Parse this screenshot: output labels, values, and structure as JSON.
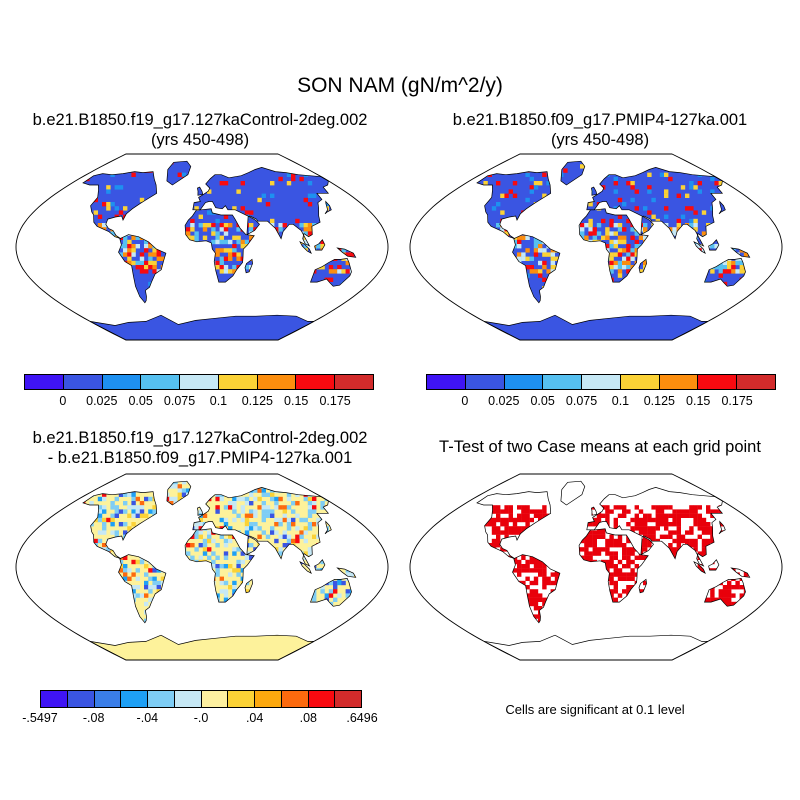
{
  "main_title": "SON NAM (gN/m^2/y)",
  "panels": {
    "top_left": {
      "title_line1": "b.e21.B1850.f19_g17.127kaControl-2deg.002",
      "title_line2": "(yrs 450-498)"
    },
    "top_right": {
      "title_line1": "b.e21.B1850.f09_g17.PMIP4-127ka.001",
      "title_line2": "(yrs 450-498)"
    },
    "bottom_left": {
      "title_line1": "b.e21.B1850.f19_g17.127kaControl-2deg.002",
      "title_line2": "- b.e21.B1850.f09_g17.PMIP4-127ka.001"
    },
    "bottom_right": {
      "title_line1": "T-Test of two Case means at each grid point",
      "note": "Cells are significant at 0.1 level"
    }
  },
  "colorbars": {
    "field": {
      "colors": [
        "#3f14f5",
        "#3a55e2",
        "#1e90f0",
        "#56c0f0",
        "#c6e8f5",
        "#fbd236",
        "#fc8e0e",
        "#f80a10",
        "#d22b2b"
      ],
      "labels": [
        "0",
        "0.025",
        "0.05",
        "0.075",
        "0.1",
        "0.125",
        "0.15",
        "0.175"
      ]
    },
    "difference": {
      "colors": [
        "#3f14f5",
        "#3a55e2",
        "#3a7ee8",
        "#1ea0f5",
        "#7ecdf5",
        "#c6e8f5",
        "#fdf0a0",
        "#fbd236",
        "#fca80e",
        "#fc6a0e",
        "#f80a10",
        "#d22b2b"
      ],
      "labels": [
        ".5497",
        ".08",
        ".04",
        ".0",
        ".04",
        ".08",
        ".6496"
      ],
      "label_prefix_negative": [
        "-",
        "-",
        "-",
        "-"
      ]
    }
  },
  "legend_colors": {
    "land_mask_fill": "#fdf29b",
    "significance": "#e8000b",
    "ocean": "#ffffff"
  }
}
